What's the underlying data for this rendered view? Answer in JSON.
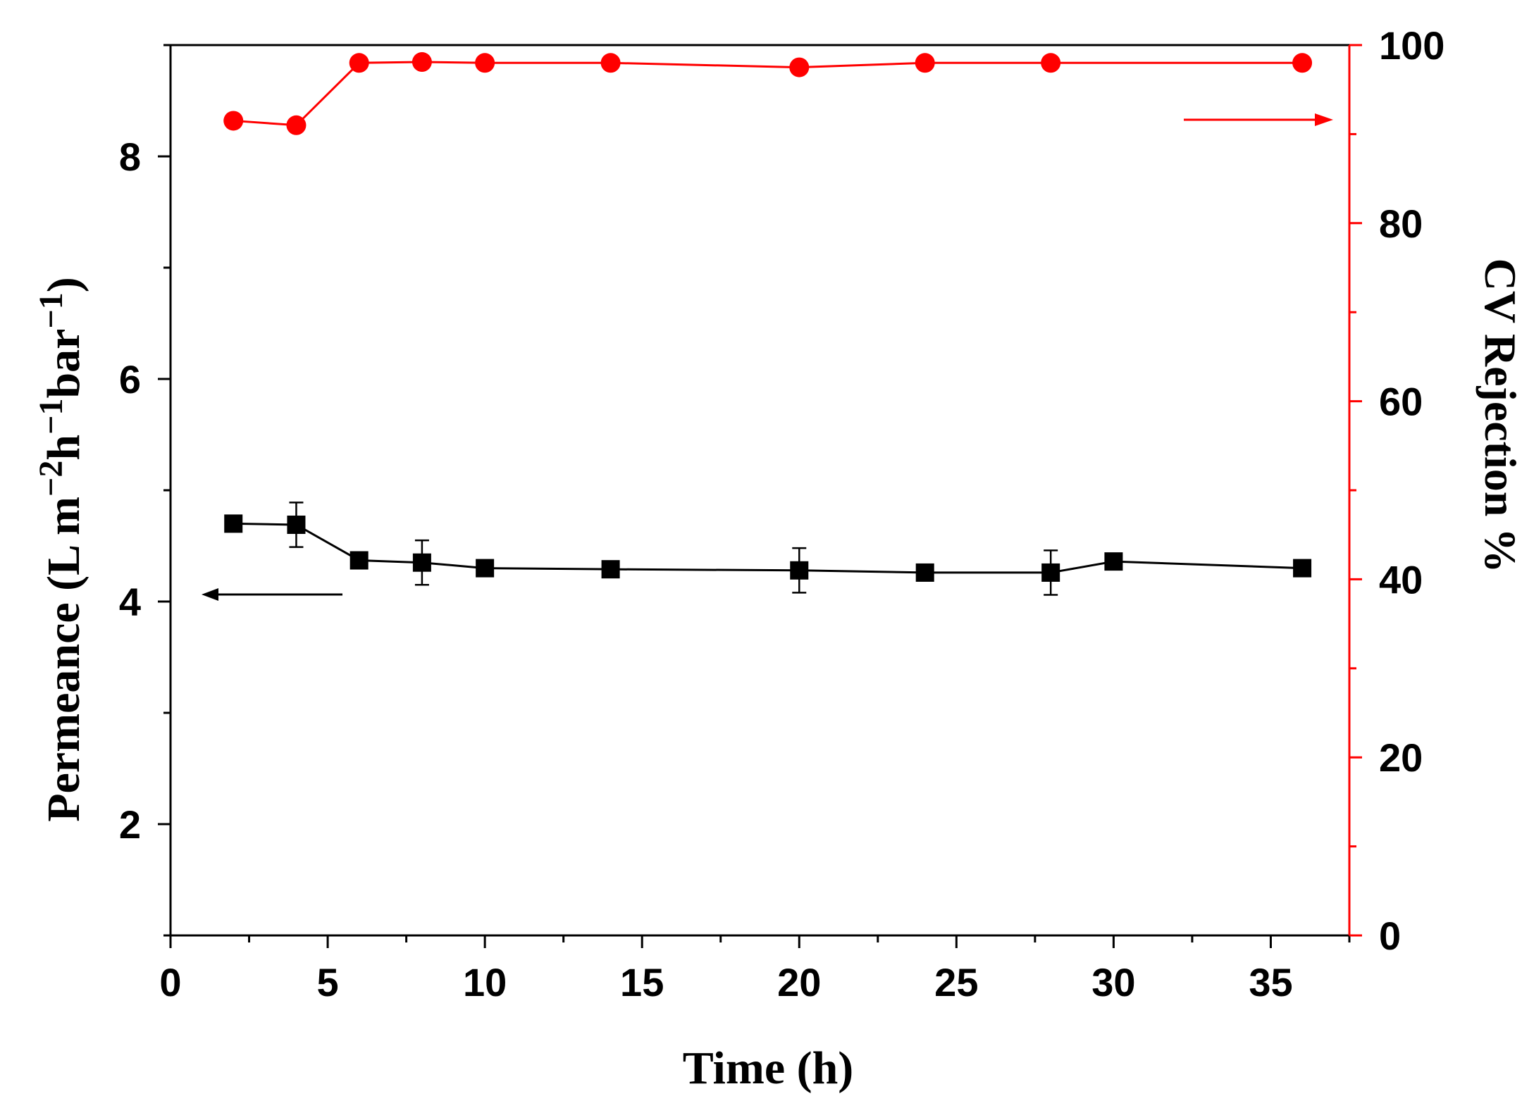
{
  "chart_data": {
    "type": "line",
    "title": "",
    "xlabel": "Time (h)",
    "ylabel_left": {
      "prefix": "Permeance (L m",
      "sup1": "−2",
      "mid1": "h",
      "sup2": "−1",
      "mid2": "bar",
      "sup3": "−1",
      "suffix": ")"
    },
    "ylabel_right": "CV Rejection %",
    "xlim": [
      0,
      37.5
    ],
    "ylim_left": [
      1,
      9
    ],
    "ylim_right": [
      0,
      100
    ],
    "x_ticks": [
      "0",
      "5",
      "10",
      "15",
      "20",
      "25",
      "30",
      "35"
    ],
    "y_left_ticks": [
      "2",
      "4",
      "6",
      "8"
    ],
    "y_right_ticks": [
      "0",
      "20",
      "40",
      "60",
      "80",
      "100"
    ],
    "colors": {
      "left": "#000000",
      "right": "#ff0000"
    },
    "series": [
      {
        "name": "Permeance",
        "axis": "left",
        "marker": "square",
        "color": "#000000",
        "x": [
          2,
          4,
          6,
          8,
          10,
          14,
          20,
          24,
          28,
          30,
          36
        ],
        "values": [
          4.7,
          4.69,
          4.37,
          4.35,
          4.3,
          4.29,
          4.28,
          4.26,
          4.26,
          4.36,
          4.3
        ],
        "errors": [
          0.05,
          0.2,
          0.05,
          0.2,
          0.05,
          0.05,
          0.2,
          0.05,
          0.2,
          0.05,
          0.05
        ]
      },
      {
        "name": "CV Rejection",
        "axis": "right",
        "marker": "circle",
        "color": "#ff0000",
        "x": [
          2,
          4,
          6,
          8,
          10,
          14,
          20,
          24,
          28,
          36
        ],
        "values": [
          91.5,
          91.0,
          98.0,
          98.1,
          98.0,
          98.0,
          97.5,
          98.0,
          98.0,
          98.0
        ]
      }
    ],
    "annotations": [
      {
        "type": "arrow",
        "direction": "left",
        "points_to": "left-axis"
      },
      {
        "type": "arrow",
        "direction": "right",
        "points_to": "right-axis"
      }
    ]
  }
}
